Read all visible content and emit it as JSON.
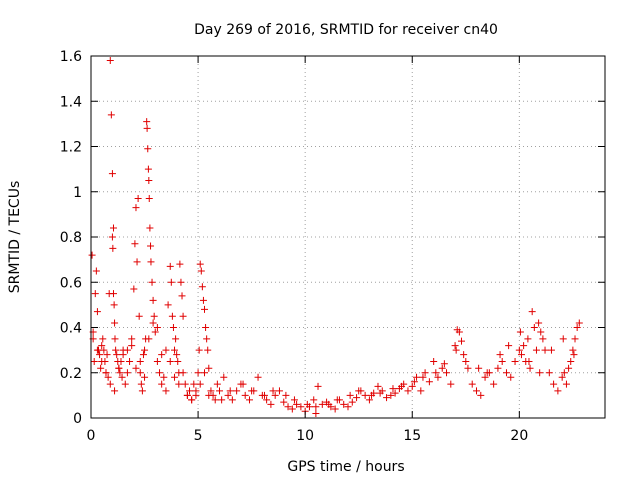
{
  "chart_data": {
    "type": "scatter",
    "title": "Day 269 of 2016, SRMTID for receiver cn40",
    "xlabel": "GPS time / hours",
    "ylabel": "SRMTID / TECUs",
    "xlim": [
      0,
      24
    ],
    "ylim": [
      0,
      1.6
    ],
    "xticks": [
      0,
      5,
      10,
      15,
      20
    ],
    "xtick_labels": [
      "0",
      "5",
      "10",
      "15",
      "20"
    ],
    "yticks": [
      0,
      0.2,
      0.4,
      0.6,
      0.8,
      1.0,
      1.2,
      1.4,
      1.6
    ],
    "ytick_labels": [
      "0",
      "0.2",
      "0.4",
      "0.6",
      "0.8",
      "1",
      "1.2",
      "1.4",
      "1.6"
    ],
    "grid": true,
    "marker": "+",
    "series": [
      {
        "name": "SRMTID",
        "color": "#e00000",
        "x": [
          0.05,
          0.1,
          0.15,
          0.2,
          0.25,
          0.3,
          0.35,
          0.4,
          0.45,
          0.5,
          0.55,
          0.6,
          0.65,
          0.7,
          0.75,
          0.8,
          0.85,
          0.9,
          0.95,
          1.0,
          1.0,
          1.02,
          1.05,
          1.05,
          1.08,
          1.1,
          1.12,
          1.15,
          1.2,
          1.25,
          1.3,
          1.35,
          1.4,
          1.45,
          1.5,
          1.6,
          1.7,
          1.8,
          1.9,
          2.0,
          2.05,
          2.1,
          2.15,
          2.2,
          2.25,
          2.3,
          2.35,
          2.4,
          2.45,
          2.5,
          2.55,
          2.6,
          2.62,
          2.65,
          2.68,
          2.7,
          2.72,
          2.75,
          2.78,
          2.8,
          2.85,
          2.9,
          2.95,
          3.0,
          3.1,
          3.2,
          3.3,
          3.4,
          3.5,
          3.6,
          3.7,
          3.75,
          3.8,
          3.85,
          3.9,
          3.95,
          4.0,
          4.05,
          4.1,
          4.15,
          4.2,
          4.25,
          4.3,
          4.4,
          4.5,
          4.6,
          4.7,
          4.8,
          4.9,
          5.0,
          5.05,
          5.1,
          5.15,
          5.2,
          5.25,
          5.3,
          5.35,
          5.4,
          5.45,
          5.5,
          5.6,
          5.7,
          5.8,
          5.9,
          6.0,
          6.2,
          6.4,
          6.6,
          6.8,
          7.0,
          7.2,
          7.4,
          7.6,
          7.8,
          8.0,
          8.2,
          8.4,
          8.6,
          8.8,
          9.0,
          9.2,
          9.4,
          9.6,
          9.8,
          10.0,
          10.2,
          10.4,
          10.5,
          10.6,
          10.8,
          11.0,
          11.2,
          11.4,
          11.6,
          11.8,
          12.0,
          12.2,
          12.4,
          12.6,
          12.8,
          13.0,
          13.2,
          13.4,
          13.6,
          13.8,
          14.0,
          14.2,
          14.4,
          14.6,
          14.8,
          15.0,
          15.2,
          15.4,
          15.6,
          15.8,
          16.0,
          16.2,
          16.4,
          16.6,
          16.8,
          17.0,
          17.1,
          17.2,
          17.3,
          17.4,
          17.6,
          17.8,
          18.0,
          18.2,
          18.4,
          18.6,
          18.8,
          19.0,
          19.2,
          19.4,
          19.6,
          19.8,
          20.0,
          20.1,
          20.2,
          20.3,
          20.4,
          20.5,
          20.6,
          20.7,
          20.8,
          20.9,
          21.0,
          21.1,
          21.2,
          21.4,
          21.6,
          21.8,
          22.0,
          22.1,
          22.2,
          22.3,
          22.4,
          22.5,
          22.6,
          22.7,
          22.8,
          0.1,
          0.3,
          0.5,
          0.7,
          0.9,
          1.1,
          1.3,
          1.5,
          1.7,
          1.9,
          2.1,
          2.3,
          2.5,
          2.7,
          2.9,
          3.1,
          3.3,
          3.5,
          3.7,
          3.9,
          4.1,
          4.3,
          4.5,
          4.7,
          4.9,
          5.1,
          5.3,
          5.5,
          6.1,
          6.5,
          7.1,
          7.5,
          8.1,
          8.5,
          9.1,
          9.5,
          10.1,
          10.5,
          11.1,
          11.5,
          12.1,
          12.5,
          13.1,
          13.5,
          14.1,
          14.5,
          15.1,
          15.5,
          16.1,
          16.5,
          17.05,
          17.5,
          18.1,
          18.5,
          19.1,
          19.5,
          20.05,
          20.45,
          20.95,
          21.5,
          22.05,
          22.55
        ],
        "y": [
          0.72,
          0.35,
          0.25,
          0.55,
          0.65,
          0.47,
          0.3,
          0.28,
          0.22,
          0.32,
          0.35,
          0.3,
          0.25,
          0.2,
          0.28,
          0.18,
          0.55,
          1.58,
          1.34,
          1.08,
          0.8,
          0.75,
          0.84,
          0.55,
          0.5,
          0.42,
          0.35,
          0.3,
          0.28,
          0.25,
          0.22,
          0.2,
          0.25,
          0.18,
          0.3,
          0.15,
          0.2,
          0.25,
          0.32,
          0.57,
          0.77,
          0.93,
          0.69,
          0.97,
          0.45,
          0.2,
          0.15,
          0.12,
          0.28,
          0.18,
          0.35,
          1.31,
          1.28,
          1.19,
          1.1,
          1.05,
          0.97,
          0.84,
          0.76,
          0.69,
          0.6,
          0.52,
          0.45,
          0.38,
          0.25,
          0.2,
          0.15,
          0.18,
          0.12,
          0.5,
          0.67,
          0.6,
          0.45,
          0.4,
          0.3,
          0.35,
          0.28,
          0.25,
          0.2,
          0.68,
          0.6,
          0.54,
          0.45,
          0.15,
          0.1,
          0.12,
          0.08,
          0.15,
          0.1,
          0.2,
          0.3,
          0.68,
          0.65,
          0.58,
          0.52,
          0.48,
          0.4,
          0.35,
          0.3,
          0.22,
          0.12,
          0.1,
          0.08,
          0.15,
          0.12,
          0.18,
          0.1,
          0.08,
          0.12,
          0.15,
          0.1,
          0.08,
          0.12,
          0.18,
          0.1,
          0.08,
          0.06,
          0.1,
          0.12,
          0.07,
          0.05,
          0.04,
          0.06,
          0.05,
          0.03,
          0.05,
          0.08,
          0.02,
          0.14,
          0.06,
          0.07,
          0.05,
          0.04,
          0.08,
          0.06,
          0.05,
          0.07,
          0.09,
          0.12,
          0.1,
          0.08,
          0.11,
          0.14,
          0.12,
          0.09,
          0.1,
          0.11,
          0.13,
          0.15,
          0.12,
          0.14,
          0.18,
          0.12,
          0.2,
          0.16,
          0.25,
          0.18,
          0.22,
          0.2,
          0.15,
          0.32,
          0.39,
          0.38,
          0.34,
          0.28,
          0.22,
          0.15,
          0.12,
          0.1,
          0.18,
          0.2,
          0.15,
          0.22,
          0.25,
          0.2,
          0.18,
          0.25,
          0.3,
          0.28,
          0.32,
          0.25,
          0.35,
          0.22,
          0.47,
          0.4,
          0.3,
          0.42,
          0.38,
          0.35,
          0.3,
          0.2,
          0.15,
          0.12,
          0.18,
          0.2,
          0.15,
          0.22,
          0.25,
          0.3,
          0.35,
          0.4,
          0.42,
          0.38,
          0.3,
          0.25,
          0.2,
          0.15,
          0.12,
          0.22,
          0.28,
          0.3,
          0.35,
          0.22,
          0.25,
          0.3,
          0.35,
          0.42,
          0.4,
          0.28,
          0.3,
          0.25,
          0.18,
          0.15,
          0.2,
          0.1,
          0.08,
          0.12,
          0.15,
          0.2,
          0.1,
          0.08,
          0.12,
          0.15,
          0.12,
          0.1,
          0.12,
          0.1,
          0.08,
          0.06,
          0.05,
          0.06,
          0.08,
          0.1,
          0.12,
          0.1,
          0.11,
          0.13,
          0.14,
          0.16,
          0.18,
          0.2,
          0.24,
          0.3,
          0.25,
          0.22,
          0.2,
          0.28,
          0.32,
          0.38,
          0.25,
          0.2,
          0.3,
          0.35,
          0.28
        ]
      }
    ]
  }
}
